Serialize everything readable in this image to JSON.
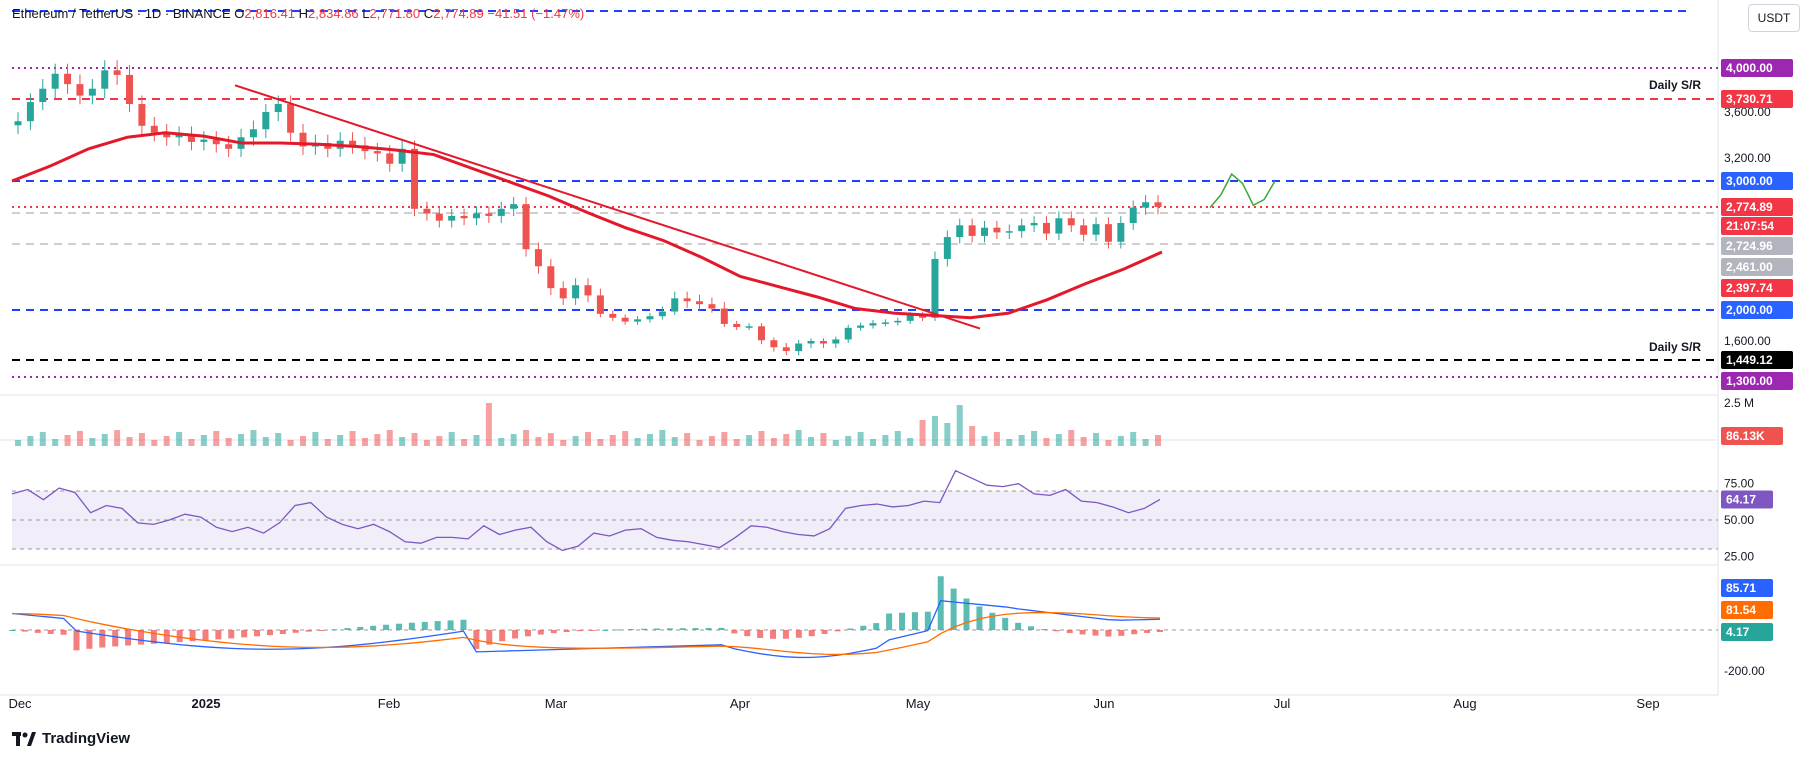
{
  "header": {
    "symbol": "Ethereum / TetherUS · 1D · BINANCE",
    "open_label": "O",
    "open": "2,816.41",
    "high_label": "H",
    "high": "2,834.86",
    "low_label": "L",
    "low": "2,771.80",
    "close_label": "C",
    "close": "2,774.89",
    "change": "−41.51 (−1.47%)"
  },
  "currency_button": "USDT",
  "branding": "TradingView",
  "colors": {
    "bullish": "#26a69a",
    "bearish": "#ef5350",
    "ma": "#e3192b",
    "resistance_dash": "#1e40ff",
    "support_dash": "#000000",
    "purple": "#9c27b0",
    "rsi_line": "#7e57c2",
    "macd_line": "#2962ff",
    "signal_line": "#ff6d00",
    "projection": "#3aa835"
  },
  "chart_data": [
    {
      "type": "candlestick",
      "pane": "price",
      "x_axis": [
        "Dec",
        "2025",
        "Feb",
        "Mar",
        "Apr",
        "May",
        "Jun",
        "Jul",
        "Aug",
        "Sep"
      ],
      "y_axis_ticks": [
        "3,600.00",
        "3,200.00",
        "1,600.00"
      ],
      "price_labels": [
        {
          "value": "4,000.00",
          "color": "#9c27b0"
        },
        {
          "value": "3,730.71",
          "color": "#f23645"
        },
        {
          "value": "3,000.00",
          "color": "#2962ff"
        },
        {
          "value": "2,774.89",
          "color": "#f23645"
        },
        {
          "value": "21:07:54",
          "color": "#f23645"
        },
        {
          "value": "2,724.96",
          "color": "#b2b5be"
        },
        {
          "value": "2,461.00",
          "color": "#b2b5be"
        },
        {
          "value": "2,397.74",
          "color": "#f23645"
        },
        {
          "value": "2,000.00",
          "color": "#2962ff"
        },
        {
          "value": "1,449.12",
          "color": "#000000"
        },
        {
          "value": "1,300.00",
          "color": "#9c27b0"
        }
      ],
      "levels": [
        {
          "value": 4000,
          "style": "dotted",
          "color": "#9c27b0"
        },
        {
          "value": 3730.71,
          "style": "dashed",
          "color": "#f23645",
          "label": "Daily S/R"
        },
        {
          "value": 3000,
          "style": "dashed",
          "color": "#1e40ff"
        },
        {
          "value": 2774.89,
          "style": "dotted",
          "color": "#f23645"
        },
        {
          "value": 2724.96,
          "style": "dashed",
          "color": "#9e9e9e"
        },
        {
          "value": 2461,
          "style": "dashed",
          "color": "#9e9e9e"
        },
        {
          "value": 2000,
          "style": "dashed",
          "color": "#1e40ff"
        },
        {
          "value": 1449.12,
          "style": "dashed",
          "color": "#000000",
          "label": "Daily S/R"
        },
        {
          "value": 1300,
          "style": "dotted",
          "color": "#9c27b0"
        }
      ],
      "series": [
        {
          "name": "ETH/USDT daily close (approx.)",
          "values": [
            3520,
            3700,
            3820,
            3950,
            3860,
            3760,
            3820,
            3980,
            3940,
            3680,
            3480,
            3420,
            3380,
            3400,
            3340,
            3360,
            3320,
            3280,
            3380,
            3450,
            3600,
            3680,
            3420,
            3300,
            3330,
            3280,
            3350,
            3310,
            3260,
            3240,
            3150,
            3280,
            2760,
            2720,
            2660,
            2700,
            2680,
            2720,
            2700,
            2760,
            2800,
            2420,
            2300,
            2150,
            2080,
            2170,
            2100,
            1950,
            1900,
            1850,
            1880,
            1920,
            1980,
            2080,
            2060,
            2040,
            2010,
            1820,
            1780,
            1790,
            1610,
            1550,
            1520,
            1580,
            1600,
            1580,
            1620,
            1770,
            1800,
            1830,
            1840,
            1860,
            1930,
            1900,
            2350,
            2520,
            2620,
            2530,
            2600,
            2560,
            2570,
            2620,
            2640,
            2550,
            2680,
            2620,
            2540,
            2630,
            2480,
            2640,
            2770,
            2816,
            2774.89
          ]
        },
        {
          "name": "Moving average",
          "values": [
            3000,
            3130,
            3280,
            3380,
            3420,
            3390,
            3330,
            3330,
            3320,
            3300,
            3270,
            3230,
            3110,
            2990,
            2870,
            2730,
            2600,
            2490,
            2360,
            2230,
            2160,
            2090,
            2010,
            1960,
            1930,
            1900,
            1960,
            2070,
            2180,
            2280,
            2397.74
          ]
        },
        {
          "name": "Trendline",
          "values": [
            3850,
            1760
          ]
        },
        {
          "name": "Projection path",
          "values": [
            2770,
            2880,
            3060,
            2980,
            2790,
            2840,
            3000
          ]
        }
      ]
    },
    {
      "type": "bar",
      "pane": "volume",
      "y_axis_ticks": [
        "2.5 M"
      ],
      "last_label": "86.13K"
    },
    {
      "type": "line",
      "pane": "rsi",
      "y_axis_ticks": [
        "75.00",
        "50.00",
        "25.00"
      ],
      "last_label": "64.17",
      "values": [
        68,
        71,
        64,
        72,
        69,
        55,
        60,
        58,
        48,
        47,
        50,
        54,
        52,
        45,
        42,
        45,
        41,
        48,
        60,
        62,
        52,
        47,
        44,
        47,
        42,
        35,
        34,
        38,
        38,
        37,
        46,
        40,
        43,
        45,
        35,
        29,
        32,
        41,
        39,
        43,
        44,
        38,
        36,
        35,
        33,
        31,
        38,
        46,
        45,
        42,
        40,
        39,
        44,
        58,
        60,
        61,
        59,
        60,
        63,
        62,
        84,
        79,
        74,
        73,
        75,
        68,
        67,
        71,
        63,
        62,
        59,
        55,
        58,
        64.17
      ]
    },
    {
      "type": "bar+line",
      "pane": "macd",
      "y_axis_ticks": [
        "-200.00"
      ],
      "labels": [
        {
          "value": "85.71",
          "color": "#2962ff"
        },
        {
          "value": "81.54",
          "color": "#ff6d00"
        },
        {
          "value": "4.17",
          "color": "#26a69a"
        }
      ]
    }
  ]
}
